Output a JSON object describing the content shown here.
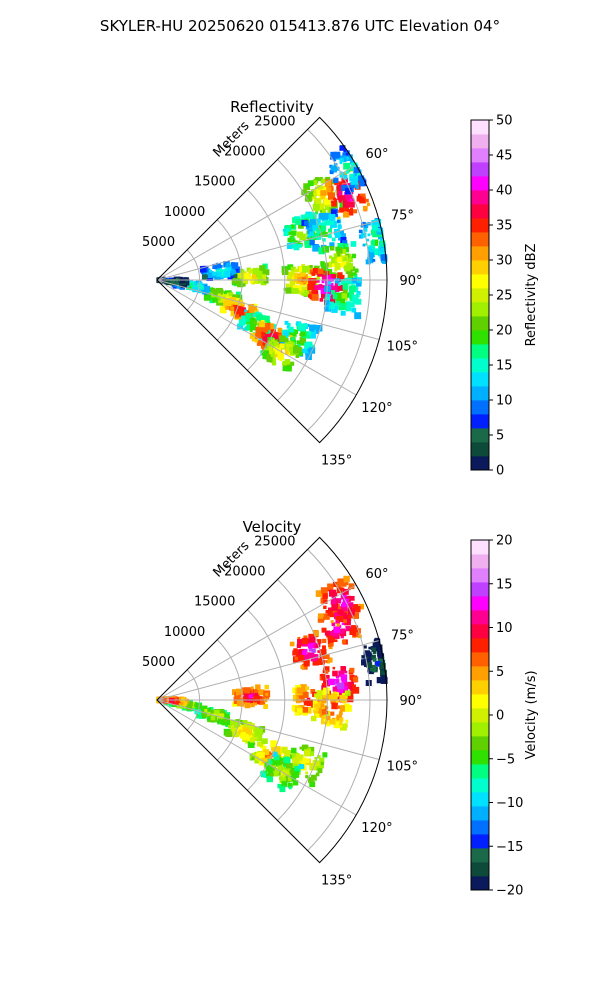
{
  "figure": {
    "title": "SKYLER-HU  20250620  015413.876 UTC Elevation 04°"
  },
  "chart_data": [
    {
      "type": "polar-sector",
      "title": "Reflectivity",
      "range_label": "Meters",
      "range_ticks": [
        5000,
        10000,
        15000,
        20000,
        25000
      ],
      "range_max": 27000,
      "azimuth_range": [
        45,
        135
      ],
      "azimuth_ticks": [
        "60°",
        "75°",
        "90°",
        "105°",
        "120°",
        "135°"
      ],
      "colorbar": {
        "label": "Reflectivity dBZ",
        "range": [
          0,
          50
        ],
        "ticks": [
          "0",
          "5",
          "10",
          "15",
          "20",
          "25",
          "30",
          "35",
          "40",
          "45",
          "50"
        ],
        "colors": [
          "#0a1a5a",
          "#0d4a3a",
          "#1a6a4a",
          "#0020ff",
          "#0070ff",
          "#00b0ff",
          "#00e0ff",
          "#00ffcc",
          "#00ff80",
          "#30e000",
          "#60d000",
          "#a0f000",
          "#d0f000",
          "#ffff00",
          "#ffd000",
          "#ffa000",
          "#ff6000",
          "#ff2000",
          "#ff0040",
          "#ff0090",
          "#ff00ff",
          "#c040ff",
          "#e080ff",
          "#f0b0f0",
          "#ffe0ff"
        ]
      },
      "echoes": [
        {
          "azimuth": 63,
          "range": 22000,
          "value": 30
        },
        {
          "azimuth": 66,
          "range": 24500,
          "value": 42
        },
        {
          "azimuth": 60,
          "range": 26000,
          "value": 18
        },
        {
          "azimuth": 72,
          "range": 18000,
          "value": 25
        },
        {
          "azimuth": 74,
          "range": 20500,
          "value": 20
        },
        {
          "azimuth": 80,
          "range": 26500,
          "value": 20
        },
        {
          "azimuth": 85,
          "range": 21500,
          "value": 28
        },
        {
          "azimuth": 90,
          "range": 17000,
          "value": 32
        },
        {
          "azimuth": 92,
          "range": 20000,
          "value": 44
        },
        {
          "azimuth": 95,
          "range": 22000,
          "value": 22
        },
        {
          "azimuth": 88,
          "range": 11000,
          "value": 30
        },
        {
          "azimuth": 82,
          "range": 7500,
          "value": 18
        },
        {
          "azimuth": 105,
          "range": 8000,
          "value": 28
        },
        {
          "azimuth": 110,
          "range": 10500,
          "value": 38
        },
        {
          "azimuth": 114,
          "range": 13000,
          "value": 24
        },
        {
          "azimuth": 117,
          "range": 15000,
          "value": 40
        },
        {
          "azimuth": 112,
          "range": 18000,
          "value": 22
        },
        {
          "azimuth": 120,
          "range": 17000,
          "value": 30
        },
        {
          "azimuth": 100,
          "range": 4000,
          "value": 20
        },
        {
          "azimuth": 95,
          "range": 1500,
          "value": 10
        }
      ]
    },
    {
      "type": "polar-sector",
      "title": "Velocity",
      "range_label": "Meters",
      "range_ticks": [
        5000,
        10000,
        15000,
        20000,
        25000
      ],
      "range_max": 27000,
      "azimuth_range": [
        45,
        135
      ],
      "azimuth_ticks": [
        "60°",
        "75°",
        "90°",
        "105°",
        "120°",
        "135°"
      ],
      "colorbar": {
        "label": "Velocity (m/s)",
        "range": [
          -20,
          20
        ],
        "ticks": [
          "−20",
          "−15",
          "−10",
          "−5",
          "0",
          "5",
          "10",
          "15",
          "20"
        ],
        "colors": [
          "#0a1a5a",
          "#0d4a3a",
          "#1a6a4a",
          "#0020ff",
          "#0070ff",
          "#00b0ff",
          "#00e0ff",
          "#00ffcc",
          "#00ff80",
          "#30e000",
          "#60d000",
          "#a0f000",
          "#d0f000",
          "#ffff00",
          "#ffd000",
          "#ffa000",
          "#ff6000",
          "#ff2000",
          "#ff0040",
          "#ff0090",
          "#ff00ff",
          "#c040ff",
          "#e080ff",
          "#f0b0f0",
          "#ffe0ff"
        ]
      },
      "echoes": [
        {
          "azimuth": 68,
          "range": 23000,
          "value": 14
        },
        {
          "azimuth": 62,
          "range": 24500,
          "value": 14
        },
        {
          "azimuth": 72,
          "range": 19000,
          "value": 14
        },
        {
          "azimuth": 85,
          "range": 21500,
          "value": 15
        },
        {
          "azimuth": 90,
          "range": 18000,
          "value": 10
        },
        {
          "azimuth": 93,
          "range": 20500,
          "value": 9
        },
        {
          "azimuth": 88,
          "range": 11000,
          "value": 12
        },
        {
          "azimuth": 80,
          "range": 26500,
          "value": -14
        },
        {
          "azimuth": 105,
          "range": 7000,
          "value": 2
        },
        {
          "azimuth": 110,
          "range": 11000,
          "value": 5
        },
        {
          "azimuth": 116,
          "range": 15000,
          "value": 7
        },
        {
          "azimuth": 113,
          "range": 19000,
          "value": 4
        },
        {
          "azimuth": 120,
          "range": 17000,
          "value": 1
        },
        {
          "azimuth": 100,
          "range": 3000,
          "value": 2
        },
        {
          "azimuth": 92,
          "range": 1500,
          "value": 12
        }
      ]
    }
  ]
}
